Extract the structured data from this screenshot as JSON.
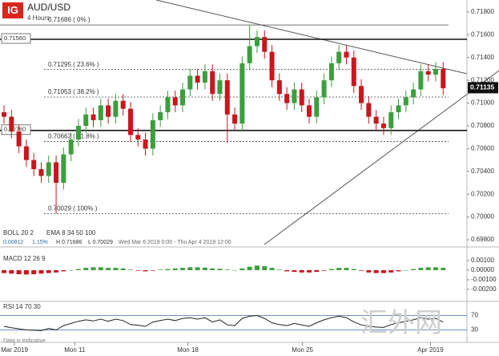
{
  "header": {
    "logo": "IG",
    "symbol": "AUD/USD",
    "interval": "4 Hours"
  },
  "chart_data": [
    {
      "type": "candlestick",
      "up_color": "#3c9e3c",
      "down_color": "#c8161e",
      "open": [
        0.7092,
        0.7088,
        0.7075,
        0.7062,
        0.705,
        0.7042,
        0.7036,
        0.7048,
        0.703,
        0.7055,
        0.7068,
        0.708,
        0.709,
        0.7085,
        0.7098,
        0.7088,
        0.7102,
        0.7095,
        0.7072,
        0.7068,
        0.706,
        0.7085,
        0.7092,
        0.7105,
        0.7098,
        0.7112,
        0.7124,
        0.7118,
        0.7128,
        0.7108,
        0.712,
        0.709,
        0.7082,
        0.7135,
        0.715,
        0.7158,
        0.7145,
        0.712,
        0.7108,
        0.71,
        0.7112,
        0.7098,
        0.7088,
        0.7105,
        0.712,
        0.7135,
        0.7145,
        0.714,
        0.7115,
        0.71,
        0.7088,
        0.7082,
        0.7078,
        0.7092,
        0.7098,
        0.7105,
        0.7112,
        0.7128,
        0.7125,
        0.713
      ],
      "high": [
        0.7098,
        0.7094,
        0.7081,
        0.7068,
        0.7056,
        0.7048,
        0.7054,
        0.7054,
        0.7061,
        0.7074,
        0.7086,
        0.7096,
        0.7096,
        0.7104,
        0.7104,
        0.7108,
        0.7108,
        0.7101,
        0.7078,
        0.7074,
        0.7091,
        0.7098,
        0.7111,
        0.7111,
        0.7118,
        0.713,
        0.713,
        0.7134,
        0.7134,
        0.7126,
        0.7126,
        0.7096,
        0.7141,
        0.71686,
        0.7164,
        0.7164,
        0.7151,
        0.7126,
        0.7114,
        0.7118,
        0.7118,
        0.7104,
        0.7111,
        0.7126,
        0.7141,
        0.7151,
        0.7151,
        0.7146,
        0.7121,
        0.7106,
        0.7094,
        0.7088,
        0.7098,
        0.7104,
        0.7111,
        0.7118,
        0.7134,
        0.7134,
        0.7136,
        0.7136
      ],
      "low": [
        0.7082,
        0.7069,
        0.7056,
        0.7044,
        0.7036,
        0.703,
        0.703,
        0.70029,
        0.7024,
        0.7049,
        0.7062,
        0.7074,
        0.7079,
        0.7079,
        0.7082,
        0.7082,
        0.7089,
        0.7066,
        0.7062,
        0.7054,
        0.7054,
        0.7079,
        0.7086,
        0.7092,
        0.7092,
        0.7106,
        0.7112,
        0.7112,
        0.7102,
        0.7102,
        0.7065,
        0.7076,
        0.7076,
        0.7129,
        0.7144,
        0.7139,
        0.7114,
        0.7102,
        0.7094,
        0.7094,
        0.7092,
        0.7082,
        0.7082,
        0.7099,
        0.7114,
        0.7129,
        0.7134,
        0.7109,
        0.7094,
        0.7082,
        0.7076,
        0.7072,
        0.7072,
        0.7086,
        0.7092,
        0.7099,
        0.7106,
        0.7119,
        0.7119,
        0.7107
      ],
      "close": [
        0.7088,
        0.7075,
        0.7062,
        0.705,
        0.7042,
        0.7036,
        0.7048,
        0.703,
        0.7055,
        0.7068,
        0.708,
        0.709,
        0.7085,
        0.7098,
        0.7088,
        0.7102,
        0.7095,
        0.7072,
        0.7068,
        0.706,
        0.7085,
        0.7092,
        0.7105,
        0.7098,
        0.7112,
        0.7124,
        0.7118,
        0.7128,
        0.7108,
        0.712,
        0.709,
        0.7082,
        0.7135,
        0.715,
        0.7158,
        0.7145,
        0.712,
        0.7108,
        0.71,
        0.7112,
        0.7098,
        0.7088,
        0.7105,
        0.712,
        0.7135,
        0.7145,
        0.714,
        0.7115,
        0.71,
        0.7088,
        0.7082,
        0.7078,
        0.7092,
        0.7098,
        0.7105,
        0.7112,
        0.7128,
        0.7125,
        0.713,
        0.7113
      ],
      "xlim": [
        -0.54,
        62.2
      ],
      "xticks": [
        {
          "value": 1.4,
          "label": "Mar 2019"
        },
        {
          "value": 9.5,
          "label": "Mon 11"
        },
        {
          "value": 24.7,
          "label": "Mon 18"
        },
        {
          "value": 40.1,
          "label": "Mon 25"
        },
        {
          "value": 57.3,
          "label": "Apr 2019"
        }
      ],
      "ylim": [
        0.69758,
        0.71905
      ],
      "yticks": [
        {
          "value": 0.698,
          "label": "0.69800"
        },
        {
          "value": 0.7,
          "label": "0.70000"
        },
        {
          "value": 0.702,
          "label": "0.70200"
        },
        {
          "value": 0.704,
          "label": "0.70400"
        },
        {
          "value": 0.706,
          "label": "0.70600"
        },
        {
          "value": 0.708,
          "label": "0.70800"
        },
        {
          "value": 0.71,
          "label": "0.71000"
        },
        {
          "value": 0.712,
          "label": "0.71200"
        },
        {
          "value": 0.714,
          "label": "0.71400"
        },
        {
          "value": 0.716,
          "label": "0.71600"
        },
        {
          "value": 0.718,
          "label": "0.71800"
        }
      ],
      "levels": [
        {
          "value": 0.71686,
          "label": "0.71686 ( 0% )"
        },
        {
          "value": 0.71295,
          "label": "0.71295 ( 23.6% )"
        },
        {
          "value": 0.71053,
          "label": "0.71053 ( 38.2% )"
        },
        {
          "value": 0.70662,
          "label": "0.70662 ( 61.8% )"
        },
        {
          "value": 0.70029,
          "label": "0.70029 ( 100% )"
        }
      ],
      "support": [
        {
          "value": 0.7156,
          "label": "0.71560"
        },
        {
          "value": 0.7076,
          "label": "0.70760"
        }
      ],
      "last": {
        "value": 0.71135,
        "label": "0.71135"
      },
      "legend": {
        "boll": "BOLL 20 2",
        "ema": "EMA 8 34 50 100",
        "change": "0.00812",
        "change_pct": "1.15%",
        "high": "H 0.71686",
        "low": "L 0.70029",
        "range": "Wed Mar 6 2019 0:00 - Thu Apr 4 2019 12:00"
      }
    },
    {
      "type": "histogram",
      "title": "MACD 12 26 9",
      "up_color": "#3c9e3c",
      "down_color": "#c8161e",
      "values": [
        -0.0003,
        -0.00036,
        -0.00042,
        -0.00045,
        -0.00042,
        -0.00036,
        -0.0003,
        -0.00024,
        -0.00012,
        0,
        0.00012,
        0.00024,
        0.0003,
        0.0003,
        0.00024,
        0.00024,
        0.00018,
        6e-05,
        -6e-05,
        -0.00012,
        -6e-05,
        6e-05,
        0.00012,
        0.00018,
        0.00024,
        0.0003,
        0.0003,
        0.00027,
        0.00018,
        0.00015,
        6e-05,
        0,
        0.00018,
        0.00036,
        0.00048,
        0.00042,
        0.00024,
        6e-05,
        -0.00012,
        -0.00018,
        -0.00024,
        -0.00024,
        -0.00018,
        -6e-05,
        0.00012,
        0.00024,
        0.00024,
        0.00012,
        -6e-05,
        -0.00024,
        -0.0003,
        -0.0003,
        -0.00024,
        -0.00012,
        0,
        0.00012,
        0.00024,
        0.0003,
        0.0003,
        0.00024
      ],
      "ylim": [
        -0.00292,
        0.00208
      ],
      "yticks": [
        {
          "value": 0.001,
          "label": "0.00100"
        },
        {
          "value": 0,
          "label": "0.00000"
        },
        {
          "value": -0.001,
          "label": "-0.00100"
        },
        {
          "value": -0.002,
          "label": "-0.00200"
        }
      ]
    },
    {
      "type": "line",
      "title": "RSI 14 70 30",
      "color": "#222222",
      "values": [
        40,
        36,
        33,
        30,
        29,
        28,
        34,
        30,
        42,
        48,
        54,
        58,
        55,
        60,
        54,
        60,
        56,
        45,
        43,
        40,
        52,
        56,
        60,
        56,
        62,
        64,
        60,
        64,
        52,
        58,
        44,
        42,
        62,
        68,
        70,
        62,
        50,
        45,
        42,
        48,
        44,
        40,
        50,
        58,
        64,
        68,
        64,
        52,
        44,
        40,
        38,
        37,
        45,
        50,
        54,
        58,
        64,
        60,
        62,
        52
      ],
      "ylim": [
        0,
        100
      ],
      "yticks": [
        70,
        30
      ]
    }
  ],
  "footer": "Data is indicative",
  "watermark": "汇外网"
}
